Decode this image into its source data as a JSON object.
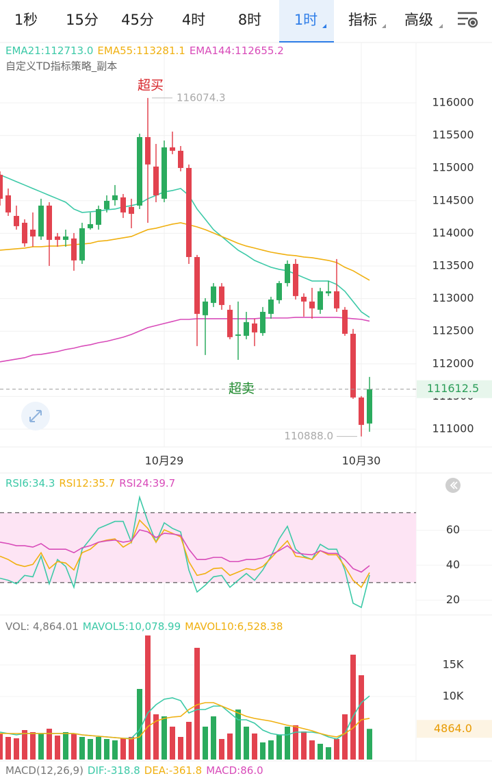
{
  "toolbar": {
    "tabs": [
      "1秒",
      "15分",
      "45分",
      "4时",
      "8时",
      "1时",
      "指标",
      "高级"
    ],
    "active_tab": 5
  },
  "chart_data": [
    {
      "type": "candlestick",
      "subtitle": "自定义TD指标策略_副本",
      "categories": [
        null,
        null,
        null,
        null,
        null,
        null,
        null,
        null,
        null,
        null,
        null,
        null,
        null,
        null,
        null,
        null,
        null,
        null,
        null,
        null,
        "10月29",
        null,
        null,
        null,
        null,
        null,
        null,
        null,
        null,
        null,
        null,
        null,
        null,
        null,
        null,
        null,
        null,
        null,
        null,
        null,
        null,
        null,
        null,
        null,
        "10月30",
        null
      ],
      "open": [
        114897,
        114582,
        114267,
        114162,
        114057,
        113952,
        114425,
        113952,
        113900,
        113921,
        113585,
        114078,
        114131,
        114372,
        114509,
        114551,
        114404,
        114425,
        115475,
        115023,
        114530,
        115317,
        115265,
        115002,
        113637,
        112745,
        112934,
        113186,
        112829,
        112430,
        112430,
        112619,
        112472,
        112766,
        112976,
        113238,
        113532,
        113028,
        112955,
        112829,
        113081,
        113112,
        112829,
        112461,
        111485,
        111086
      ],
      "high": [
        114950,
        114687,
        114425,
        114215,
        114320,
        114530,
        114477,
        114005,
        114057,
        114005,
        114162,
        114320,
        114425,
        114582,
        114740,
        114603,
        114530,
        115527,
        116074.3,
        115370,
        115422,
        115559,
        115338,
        115055,
        113669,
        113007,
        113238,
        113238,
        112902,
        112955,
        112797,
        112692,
        112871,
        113028,
        113270,
        113585,
        113606,
        113081,
        113165,
        113165,
        113270,
        113606,
        112871,
        112535,
        111506,
        111800
      ],
      "low": [
        114425,
        114267,
        114057,
        113795,
        113795,
        113900,
        113501,
        113795,
        113795,
        113427,
        113532,
        114057,
        114057,
        114320,
        114425,
        114236,
        114078,
        114372,
        114162,
        114477,
        114477,
        115212,
        114950,
        113532,
        112272,
        112136,
        112871,
        112829,
        112377,
        112062,
        112377,
        112272,
        112430,
        112692,
        112923,
        113186,
        112986,
        112724,
        112692,
        112766,
        113039,
        112797,
        112430,
        111464,
        110888.0,
        110960
      ],
      "close": [
        114530,
        114320,
        114110,
        113847,
        113952,
        114425,
        113900,
        113900,
        113952,
        113585,
        114078,
        114141,
        114372,
        114498,
        114582,
        114320,
        114299,
        115475,
        115055,
        114582,
        115317,
        115265,
        115002,
        113637,
        112766,
        112955,
        113186,
        112902,
        112409,
        112451,
        112640,
        112482,
        112797,
        112986,
        113238,
        113532,
        113039,
        112955,
        112850,
        113112,
        113112,
        112850,
        112461,
        111485,
        111065,
        111612.5
      ],
      "up_color": "#2bab5e",
      "down_color": "#e2434f",
      "ylim": [
        110727,
        116924
      ],
      "yticks": [
        111000,
        111500,
        112000,
        112500,
        113000,
        113500,
        114000,
        114500,
        115000,
        115500,
        116000
      ],
      "grid": true,
      "low_label": "110888.0",
      "annotations": [
        "超买",
        "超卖"
      ],
      "series": [
        {
          "name": "EMA21:112713.0",
          "color": "#3cc9a7",
          "values": [
            114897,
            114845,
            114792,
            114740,
            114687,
            114635,
            114582,
            114530,
            114477,
            114372,
            114320,
            114330,
            114341,
            114362,
            114372,
            114404,
            114425,
            114456,
            114530,
            114582,
            114635,
            114656,
            114687,
            114582,
            114372,
            114215,
            114057,
            113952,
            113847,
            113742,
            113669,
            113585,
            113532,
            113480,
            113448,
            113427,
            113375,
            113322,
            113270,
            113270,
            113270,
            113217,
            113112,
            112955,
            112797,
            112713.0
          ]
        },
        {
          "name": "EMA55:113281.1",
          "color": "#f0b010",
          "values": [
            113742,
            113753,
            113763,
            113774,
            113795,
            113795,
            113805,
            113805,
            113816,
            113826,
            113837,
            113847,
            113879,
            113889,
            113910,
            113931,
            113952,
            114005,
            114057,
            114078,
            114110,
            114141,
            114162,
            114131,
            114099,
            114057,
            114005,
            113952,
            113900,
            113847,
            113805,
            113774,
            113742,
            113711,
            113690,
            113669,
            113658,
            113637,
            113627,
            113606,
            113585,
            113553,
            113480,
            113427,
            113354,
            113281.1
          ]
        },
        {
          "name": "EMA144:112655.2",
          "color": "#d84bb9",
          "values": [
            112031,
            112052,
            112073,
            112094,
            112136,
            112146,
            112167,
            112188,
            112220,
            112241,
            112272,
            112293,
            112325,
            112346,
            112377,
            112409,
            112451,
            112503,
            112556,
            112587,
            112619,
            112650,
            112682,
            112682,
            112692,
            112692,
            112692,
            112692,
            112692,
            112692,
            112692,
            112692,
            112703,
            112703,
            112703,
            112703,
            112713,
            112713,
            112713,
            112713,
            112713,
            112713,
            112703,
            112692,
            112682,
            112655.2
          ]
        }
      ]
    },
    {
      "type": "line",
      "ylim": [
        11.5,
        92.7
      ],
      "yticks": [
        20,
        40,
        60
      ],
      "reference_lines": [
        70,
        30
      ],
      "band_color": "#fde4f4",
      "series": [
        {
          "name": "RSI6:34.3",
          "color": "#3cc9a7",
          "values": [
            32.5,
            31.3,
            29.3,
            34.1,
            33.3,
            45.1,
            29.3,
            43.2,
            39.2,
            27.3,
            49.1,
            55.0,
            61.0,
            63.0,
            65.0,
            65.0,
            53.1,
            78.8,
            65.0,
            53.1,
            64.2,
            61.0,
            59.0,
            37.2,
            24.6,
            28.5,
            33.3,
            34.1,
            27.3,
            31.3,
            35.2,
            31.3,
            37.2,
            45.1,
            55.0,
            62.2,
            49.1,
            45.1,
            43.2,
            51.9,
            49.1,
            49.1,
            37.2,
            18.2,
            15.8,
            34.3
          ]
        },
        {
          "name": "RSI12:35.7",
          "color": "#f0b010",
          "values": [
            45.1,
            43.2,
            40.4,
            39.2,
            40.4,
            47.1,
            38.0,
            42.0,
            41.2,
            37.2,
            47.1,
            49.1,
            53.1,
            54.3,
            55.0,
            50.3,
            53.1,
            65.7,
            61.0,
            53.1,
            60.2,
            58.2,
            56.2,
            42.0,
            34.1,
            35.2,
            38.0,
            38.4,
            34.1,
            36.0,
            38.0,
            37.2,
            39.2,
            44.0,
            49.1,
            53.9,
            45.1,
            44.4,
            43.2,
            48.3,
            45.9,
            45.9,
            39.2,
            31.3,
            27.3,
            35.7
          ]
        },
        {
          "name": "RSI24:39.7",
          "color": "#d84bb9",
          "values": [
            53.1,
            52.3,
            51.1,
            51.1,
            50.3,
            52.3,
            49.1,
            49.1,
            49.1,
            47.1,
            49.9,
            51.1,
            53.1,
            53.9,
            54.3,
            53.1,
            53.9,
            60.2,
            59.0,
            55.8,
            58.2,
            57.8,
            57.0,
            49.1,
            43.2,
            43.2,
            44.4,
            44.4,
            42.0,
            42.0,
            43.2,
            43.2,
            44.0,
            45.9,
            48.3,
            51.1,
            47.1,
            46.3,
            45.9,
            48.3,
            46.7,
            46.7,
            43.2,
            38.0,
            36.0,
            39.7
          ]
        }
      ]
    },
    {
      "type": "volume",
      "name": "VOL: 4,864.01",
      "values": [
        4130,
        3587,
        3370,
        4674,
        4348,
        4130,
        4891,
        3804,
        4348,
        4130,
        3587,
        3261,
        3587,
        3261,
        3043,
        3370,
        3587,
        11196,
        19674,
        7174,
        6848,
        5217,
        3587,
        5978,
        17717,
        5217,
        6848,
        3261,
        4130,
        7935,
        5217,
        4130,
        2717,
        3043,
        3913,
        5217,
        5435,
        4457,
        3043,
        2500,
        1957,
        3261,
        7174,
        16630,
        13370,
        4864.01
      ],
      "last_label": "4864.0",
      "ylim": [
        0,
        22609
      ],
      "yticks": [
        {
          "value": 10000,
          "label": "10K"
        },
        {
          "value": 15000,
          "label": "15K"
        }
      ],
      "series": [
        {
          "name": "MAVOL5:10,078.99",
          "color": "#3cc9a7",
          "values": [
            4348,
            4130,
            3913,
            4130,
            4130,
            4130,
            4130,
            4130,
            4130,
            4130,
            3913,
            3804,
            3696,
            3587,
            3478,
            3370,
            3370,
            4674,
            7391,
            8696,
            9565,
            9783,
            9348,
            7391,
            7935,
            7935,
            8478,
            8478,
            7391,
            6304,
            6304,
            5761,
            4674,
            4130,
            3913,
            3913,
            4348,
            4348,
            4348,
            4130,
            3587,
            3261,
            4130,
            6848,
            9022,
            10078.99
          ]
        },
        {
          "name": "MAVOL10:6,528.38",
          "color": "#f0b010",
          "values": [
            4130,
            4130,
            4130,
            4130,
            4130,
            4130,
            4130,
            4130,
            4130,
            4130,
            3913,
            3804,
            3696,
            3587,
            3478,
            3370,
            3261,
            3587,
            5217,
            6087,
            6522,
            6739,
            6848,
            7935,
            8696,
            9022,
            9022,
            8478,
            7935,
            7391,
            6848,
            6522,
            6304,
            6087,
            5761,
            5435,
            5217,
            4891,
            4565,
            4130,
            3804,
            3587,
            4130,
            5000,
            6304,
            6528.38
          ]
        }
      ]
    },
    {
      "type": "macd",
      "title": "MACD(12,26,9)",
      "legend": [
        "DIF:-318.8",
        "DEA:-361.8",
        "MACD:86.0"
      ],
      "legend_colors": [
        "#3cc9a7",
        "#f0b010",
        "#d84bb9"
      ]
    }
  ]
}
